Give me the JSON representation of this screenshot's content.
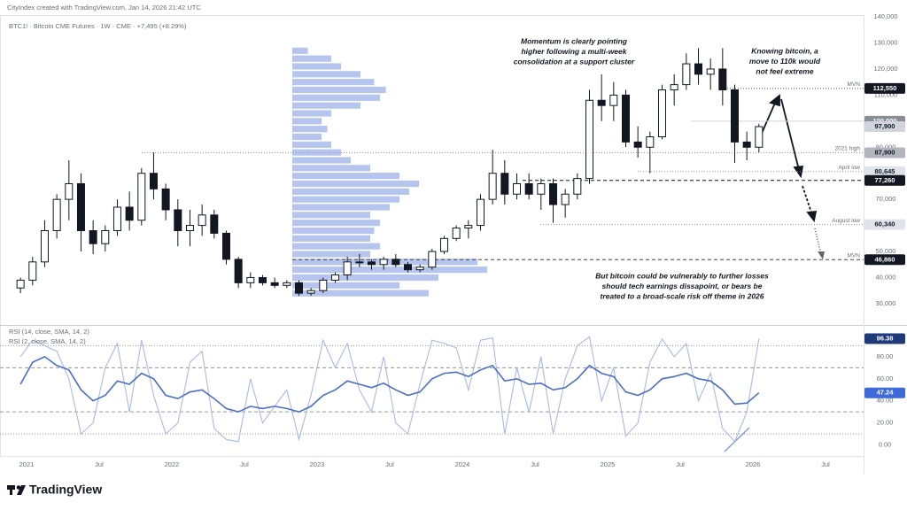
{
  "header": "CityIndex created with TradingView.com, Jan 14, 2026 21:42 UTC",
  "brand": "TradingView",
  "chart_data": [
    {
      "type": "candlestick",
      "legend": "BTC1! · Bitcoin CME Futures · 1W · CME · +7,495 (+8.29%)",
      "up_color": "#ffffff",
      "down_color": "#131722",
      "wick_color": "#131722",
      "categories": [
        null,
        "2021",
        null,
        null,
        null,
        null,
        null,
        "Jul",
        null,
        null,
        null,
        null,
        null,
        "2022",
        null,
        null,
        null,
        null,
        null,
        "Jul",
        null,
        null,
        null,
        null,
        null,
        "2023",
        null,
        null,
        null,
        null,
        null,
        "Jul",
        null,
        null,
        null,
        null,
        null,
        "2024",
        null,
        null,
        null,
        null,
        null,
        "Jul",
        null,
        null,
        null,
        null,
        null,
        "2025",
        null,
        null,
        null,
        null,
        null,
        "Jul",
        null,
        null,
        null,
        null,
        null,
        "2026",
        null,
        null,
        null,
        null,
        null,
        "Jul",
        null,
        null
      ],
      "open": [
        36000,
        39000,
        46000,
        58000,
        70000,
        76000,
        58000,
        53000,
        58000,
        67000,
        62000,
        80000,
        74000,
        66000,
        58000,
        60000,
        64000,
        57000,
        47000,
        38000,
        40000,
        38000,
        37000,
        38000,
        34000,
        35000,
        39000,
        41000,
        46000,
        46000,
        45000,
        47000,
        45000,
        43000,
        44000,
        50000,
        55000,
        59000,
        60000,
        70000,
        80000,
        72000,
        76000,
        72000,
        76000,
        68000,
        72000,
        78000,
        108000,
        106000,
        110000,
        92000,
        90000,
        94000,
        112000,
        114000,
        122000,
        118000,
        120000,
        112000,
        92000,
        90000,
        null,
        null,
        null,
        null,
        null,
        null,
        null,
        null
      ],
      "high": [
        40000,
        48000,
        62000,
        72000,
        85000,
        80000,
        62000,
        60000,
        70000,
        73000,
        82000,
        88000,
        76000,
        70000,
        66000,
        68000,
        66000,
        58000,
        48000,
        42000,
        41000,
        40000,
        39000,
        39000,
        36000,
        40000,
        42000,
        48000,
        49000,
        47000,
        48000,
        49000,
        46000,
        45000,
        51000,
        56000,
        60000,
        62000,
        72000,
        89000,
        85000,
        80000,
        80000,
        78000,
        78000,
        74000,
        80000,
        112000,
        118000,
        115000,
        112000,
        98000,
        96000,
        114000,
        118000,
        126000,
        128000,
        124000,
        128000,
        114000,
        96000,
        99000,
        null,
        null,
        null,
        null,
        null,
        null,
        null,
        null
      ],
      "low": [
        34000,
        37000,
        44000,
        55000,
        62000,
        50000,
        49000,
        50000,
        56000,
        58000,
        60000,
        70000,
        62000,
        52000,
        52000,
        56000,
        55000,
        45000,
        36000,
        36000,
        37000,
        36000,
        36000,
        33000,
        33000,
        34000,
        38000,
        39000,
        44000,
        43000,
        43000,
        44000,
        42000,
        42000,
        43000,
        49000,
        54000,
        55000,
        58000,
        68000,
        68000,
        70000,
        70000,
        66000,
        61000,
        63000,
        70000,
        76000,
        100000,
        100000,
        90000,
        86000,
        80000,
        93000,
        106000,
        112000,
        114000,
        112000,
        106000,
        84000,
        85000,
        88000,
        null,
        null,
        null,
        null,
        null,
        null,
        null,
        null
      ],
      "close": [
        39000,
        46000,
        58000,
        70000,
        76000,
        58000,
        53000,
        58000,
        67000,
        62000,
        80000,
        74000,
        66000,
        58000,
        60000,
        64000,
        57000,
        47000,
        38000,
        40000,
        38000,
        37000,
        38000,
        34000,
        35000,
        39000,
        41000,
        46000,
        46000,
        45000,
        47000,
        45000,
        43000,
        44000,
        50000,
        55000,
        59000,
        60000,
        70000,
        80000,
        72000,
        76000,
        72000,
        76000,
        68000,
        72000,
        78000,
        108000,
        106000,
        110000,
        92000,
        90000,
        94000,
        112000,
        114000,
        122000,
        118000,
        120000,
        112000,
        92000,
        90000,
        97900,
        null,
        null,
        null,
        null,
        null,
        null,
        null,
        null
      ],
      "ylim": [
        22500,
        140700
      ],
      "yticks": [
        {
          "value": 30000,
          "label": "30,000"
        },
        {
          "value": 40000,
          "label": "40,000"
        },
        {
          "value": 50000,
          "label": "50,000"
        },
        {
          "value": 60000,
          "label": "60,000"
        },
        {
          "value": 70000,
          "label": "70,000"
        },
        {
          "value": 80000,
          "label": "80,000"
        },
        {
          "value": 90000,
          "label": "90,000"
        },
        {
          "value": 100000,
          "label": "100,000"
        },
        {
          "value": 110000,
          "label": "110,000"
        },
        {
          "value": 120000,
          "label": "120,000"
        },
        {
          "value": 130000,
          "label": "130,000"
        },
        {
          "value": 140000,
          "label": "140,000"
        }
      ],
      "levels": [
        {
          "value": 112550,
          "label": "112,550",
          "tag": "MVN",
          "line": "dotted",
          "line_color": "#555555",
          "box_color": "#131722",
          "text_color": "#ffffff"
        },
        {
          "value": 100000,
          "label": "100,000",
          "line": "solid",
          "line_color": "#d1d4dc",
          "box_color": "#8a8d96",
          "text_color": "#ffffff"
        },
        {
          "value": 97900,
          "label": "97,900",
          "line": "none",
          "line_color": "#d1d4dc",
          "box_color": "#d1d4dc",
          "text_color": "#131722"
        },
        {
          "value": 87900,
          "label": "87,900",
          "tag": "2021 high",
          "line": "dotted",
          "line_color": "#9598a1",
          "box_color": "#b2b5be",
          "text_color": "#131722"
        },
        {
          "value": 80645,
          "label": "80,645",
          "tag": "April low",
          "line": "dotted",
          "line_color": "#9598a1",
          "box_color": "#e0e3eb",
          "text_color": "#131722"
        },
        {
          "value": 77260,
          "label": "77,260",
          "line": "dashed",
          "line_color": "#131722",
          "box_color": "#131722",
          "text_color": "#ffffff"
        },
        {
          "value": 60340,
          "label": "60,340",
          "tag": "August low",
          "line": "dotted",
          "line_color": "#9598a1",
          "box_color": "#e0e3eb",
          "text_color": "#131722"
        },
        {
          "value": 46860,
          "label": "46,860",
          "tag": "MVN",
          "line": "dashed",
          "line_color": "#444444",
          "box_color": "#131722",
          "text_color": "#ffffff"
        }
      ],
      "volume_profile": {
        "color": "#5b7fd6",
        "prices": [
          34000,
          37000,
          40000,
          43000,
          46000,
          49000,
          52000,
          55000,
          58000,
          61000,
          64000,
          67000,
          70000,
          73000,
          76000,
          79000,
          82000,
          85000,
          88000,
          91000,
          94000,
          97000,
          100000,
          103000,
          106000,
          109000,
          112000,
          115000,
          118000,
          121000,
          124000,
          127000
        ],
        "values": [
          70,
          55,
          75,
          100,
          95,
          40,
          45,
          40,
          42,
          45,
          40,
          50,
          55,
          60,
          65,
          55,
          40,
          30,
          25,
          20,
          15,
          18,
          15,
          20,
          35,
          45,
          48,
          42,
          35,
          25,
          20,
          8
        ]
      },
      "annotations": [
        {
          "lines": [
            "Momentum is clearly pointing",
            "higher following a multi-week",
            "consolidation at a support cluster"
          ]
        },
        {
          "lines": [
            "Knowing bitcoin, a",
            "move to 110k would",
            "not feel extreme"
          ]
        },
        {
          "lines": [
            "But bitcoin could be vulnerably to further losses",
            "should tech earnings dissapoint, or bears be",
            "treated to a broad-scale risk off theme in 2026"
          ]
        }
      ]
    },
    {
      "type": "line",
      "series": [
        {
          "name": "RSI (14, close, SMA, 14, 2)",
          "color": "#4a6fc9",
          "width": 1.6,
          "box_color": "#3d6ad6",
          "values": [
            55,
            75,
            80,
            72,
            68,
            50,
            40,
            45,
            58,
            55,
            65,
            60,
            45,
            42,
            48,
            50,
            42,
            33,
            30,
            35,
            33,
            35,
            33,
            30,
            35,
            45,
            50,
            58,
            55,
            52,
            56,
            50,
            45,
            48,
            60,
            65,
            66,
            62,
            68,
            72,
            58,
            60,
            55,
            56,
            50,
            52,
            60,
            72,
            65,
            62,
            48,
            45,
            50,
            60,
            62,
            65,
            60,
            58,
            50,
            37,
            38,
            47.24,
            null,
            null,
            null,
            null,
            null,
            null,
            null,
            null
          ]
        },
        {
          "name": "RSI (2, close, SMA, 14, 2)",
          "color": "#a9b9e3",
          "width": 1.1,
          "box_color": "#1e3a78",
          "values": [
            80,
            95,
            90,
            85,
            60,
            10,
            20,
            70,
            92,
            30,
            95,
            45,
            10,
            20,
            75,
            85,
            15,
            5,
            3,
            60,
            20,
            35,
            50,
            5,
            45,
            95,
            70,
            92,
            50,
            30,
            80,
            20,
            10,
            55,
            95,
            92,
            88,
            50,
            95,
            97,
            10,
            70,
            30,
            80,
            10,
            60,
            90,
            98,
            40,
            70,
            8,
            20,
            75,
            96,
            80,
            92,
            40,
            65,
            15,
            3,
            30,
            96.38,
            null,
            null,
            null,
            null,
            null,
            null,
            null,
            null
          ]
        }
      ],
      "ylim": [
        -10,
        108
      ],
      "yticks": [
        {
          "value": 0,
          "label": "0.00"
        },
        {
          "value": 20,
          "label": "20.00"
        },
        {
          "value": 40,
          "label": "40.00"
        },
        {
          "value": 60,
          "label": "60.00"
        },
        {
          "value": 80,
          "label": "80.00"
        }
      ],
      "levels": [
        90,
        70,
        30,
        10
      ]
    }
  ]
}
